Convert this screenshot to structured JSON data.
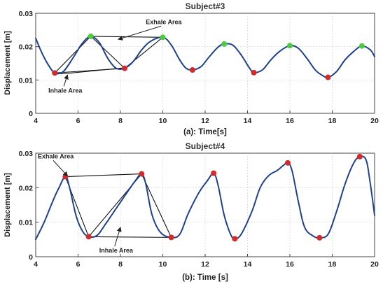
{
  "chart_data": [
    {
      "type": "line",
      "title": "Subject#3",
      "xlabel": "(a): Time[s]",
      "ylabel": "Displacement [m]",
      "xlim": [
        4,
        20
      ],
      "ylim": [
        0,
        0.03
      ],
      "xticks": [
        4,
        6,
        8,
        10,
        12,
        14,
        16,
        18,
        20
      ],
      "xtick_labels": [
        "4",
        "6",
        "8",
        "10",
        "12",
        "14",
        "16",
        "18",
        "20"
      ],
      "yticks": [
        0,
        0.01,
        0.02,
        0.03
      ],
      "ytick_labels": [
        "0",
        "0.01",
        "0.02",
        "0.03"
      ],
      "grid": true,
      "line_color": "#1f3f8f",
      "series": [
        {
          "x": [
            4,
            4.3,
            4.6,
            4.9,
            5.3,
            5.8,
            6.2,
            6.6,
            7.0,
            7.4,
            7.8,
            8.2,
            8.6,
            9.0,
            9.4,
            10.0,
            10.4,
            10.8,
            11.1,
            11.4,
            11.8,
            12.2,
            12.6,
            12.9,
            13.3,
            13.7,
            14.1,
            14.3,
            14.7,
            15.1,
            15.5,
            16.0,
            16.4,
            16.8,
            17.2,
            17.5,
            17.8,
            18.2,
            18.6,
            19.0,
            19.4,
            19.8,
            20
          ],
          "y": [
            0.0225,
            0.018,
            0.0145,
            0.0121,
            0.0125,
            0.017,
            0.021,
            0.0231,
            0.0212,
            0.0165,
            0.0135,
            0.0135,
            0.0155,
            0.019,
            0.0215,
            0.0228,
            0.0205,
            0.016,
            0.0135,
            0.013,
            0.014,
            0.017,
            0.0198,
            0.0208,
            0.0205,
            0.0175,
            0.0135,
            0.0122,
            0.013,
            0.016,
            0.0185,
            0.0203,
            0.0195,
            0.0165,
            0.013,
            0.0115,
            0.0108,
            0.0125,
            0.016,
            0.0185,
            0.0202,
            0.019,
            0.017
          ]
        }
      ],
      "exhale_peaks": [
        {
          "x": 6.6,
          "y": 0.0231
        },
        {
          "x": 10.0,
          "y": 0.0228
        },
        {
          "x": 12.9,
          "y": 0.0208
        },
        {
          "x": 16.0,
          "y": 0.0203
        },
        {
          "x": 19.4,
          "y": 0.0202
        }
      ],
      "inhale_valleys": [
        {
          "x": 4.9,
          "y": 0.0121
        },
        {
          "x": 8.2,
          "y": 0.0135
        },
        {
          "x": 11.4,
          "y": 0.013
        },
        {
          "x": 14.3,
          "y": 0.0122
        },
        {
          "x": 17.8,
          "y": 0.0108
        }
      ],
      "peak_color": "#4ccc3a",
      "valley_color": "#d42a2a",
      "annotations": [
        {
          "text": "Exhale Area",
          "x": 9.2,
          "y": 0.0268,
          "anchor": "start",
          "arrow_to": {
            "x": 7.9,
            "y": 0.0222
          }
        },
        {
          "text": "Inhale Area",
          "x": 4.6,
          "y": 0.0062,
          "anchor": "start",
          "arrow_to": {
            "x": 5.5,
            "y": 0.0115
          }
        }
      ],
      "area_lines": [
        [
          {
            "x": 6.6,
            "y": 0.0231
          },
          {
            "x": 10.0,
            "y": 0.0228
          }
        ],
        [
          {
            "x": 6.6,
            "y": 0.0231
          },
          {
            "x": 8.2,
            "y": 0.0135
          }
        ],
        [
          {
            "x": 8.2,
            "y": 0.0135
          },
          {
            "x": 10.0,
            "y": 0.0228
          }
        ],
        [
          {
            "x": 4.9,
            "y": 0.0121
          },
          {
            "x": 6.6,
            "y": 0.0231
          }
        ],
        [
          {
            "x": 4.9,
            "y": 0.0121
          },
          {
            "x": 8.2,
            "y": 0.0135
          }
        ],
        [
          {
            "x": 5.2,
            "y": 0.0118
          },
          {
            "x": 8.1,
            "y": 0.0136
          }
        ]
      ]
    },
    {
      "type": "line",
      "title": "Subject#4",
      "xlabel": "(b): Time [s]",
      "ylabel": "Displacement [m]",
      "xlim": [
        4,
        20
      ],
      "ylim": [
        0,
        0.03
      ],
      "xticks": [
        4,
        6,
        8,
        10,
        12,
        14,
        16,
        18,
        20
      ],
      "xtick_labels": [
        "4",
        "6",
        "8",
        "10",
        "12",
        "14",
        "16",
        "18",
        "20"
      ],
      "yticks": [
        0,
        0.01,
        0.02,
        0.03
      ],
      "ytick_labels": [
        "0",
        "0.01",
        "0.02",
        "0.03"
      ],
      "grid": true,
      "line_color": "#1f3f8f",
      "series": [
        {
          "x": [
            4,
            4.4,
            4.8,
            5.1,
            5.4,
            5.6,
            5.9,
            6.2,
            6.5,
            6.9,
            7.3,
            7.8,
            8.3,
            8.7,
            9.0,
            9.2,
            9.5,
            9.9,
            10.4,
            10.8,
            11.2,
            11.7,
            12.1,
            12.4,
            12.6,
            12.9,
            13.2,
            13.4,
            13.7,
            14.2,
            14.6,
            15.0,
            15.4,
            15.7,
            15.9,
            16.1,
            16.4,
            16.7,
            17.1,
            17.4,
            17.8,
            18.2,
            18.6,
            19.0,
            19.3,
            19.6,
            19.8,
            20
          ],
          "y": [
            0.005,
            0.01,
            0.016,
            0.02,
            0.0232,
            0.02,
            0.012,
            0.0075,
            0.0058,
            0.0062,
            0.0095,
            0.014,
            0.0185,
            0.022,
            0.024,
            0.021,
            0.012,
            0.007,
            0.0056,
            0.0065,
            0.0125,
            0.0185,
            0.022,
            0.0242,
            0.021,
            0.012,
            0.0065,
            0.0052,
            0.0065,
            0.013,
            0.02,
            0.0235,
            0.025,
            0.0265,
            0.0272,
            0.025,
            0.016,
            0.0085,
            0.006,
            0.0055,
            0.0065,
            0.013,
            0.021,
            0.027,
            0.029,
            0.028,
            0.021,
            0.012
          ]
        }
      ],
      "exhale_peaks": [
        {
          "x": 5.4,
          "y": 0.0232
        },
        {
          "x": 9.0,
          "y": 0.024
        },
        {
          "x": 12.4,
          "y": 0.0242
        },
        {
          "x": 15.9,
          "y": 0.0272
        },
        {
          "x": 19.3,
          "y": 0.029
        }
      ],
      "inhale_valleys": [
        {
          "x": 6.5,
          "y": 0.0058
        },
        {
          "x": 10.4,
          "y": 0.0056
        },
        {
          "x": 13.4,
          "y": 0.0052
        },
        {
          "x": 17.4,
          "y": 0.0055
        }
      ],
      "peak_color": "#d42a2a",
      "valley_color": "#d42a2a",
      "annotations": [
        {
          "text": "Exhale Area",
          "x": 4.1,
          "y": 0.0285,
          "anchor": "start",
          "arrow_to": {
            "x": 5.5,
            "y": 0.0234
          }
        },
        {
          "text": "Inhale Area",
          "x": 7.0,
          "y": 0.0012,
          "anchor": "start",
          "arrow_to": {
            "x": 8.0,
            "y": 0.0085
          }
        }
      ],
      "area_lines": [
        [
          {
            "x": 5.4,
            "y": 0.0232
          },
          {
            "x": 9.0,
            "y": 0.024
          }
        ],
        [
          {
            "x": 5.4,
            "y": 0.0232
          },
          {
            "x": 6.5,
            "y": 0.0058
          }
        ],
        [
          {
            "x": 6.5,
            "y": 0.0058
          },
          {
            "x": 9.0,
            "y": 0.024
          }
        ],
        [
          {
            "x": 6.5,
            "y": 0.0058
          },
          {
            "x": 10.4,
            "y": 0.0056
          }
        ],
        [
          {
            "x": 9.0,
            "y": 0.024
          },
          {
            "x": 10.4,
            "y": 0.0056
          }
        ]
      ]
    }
  ]
}
